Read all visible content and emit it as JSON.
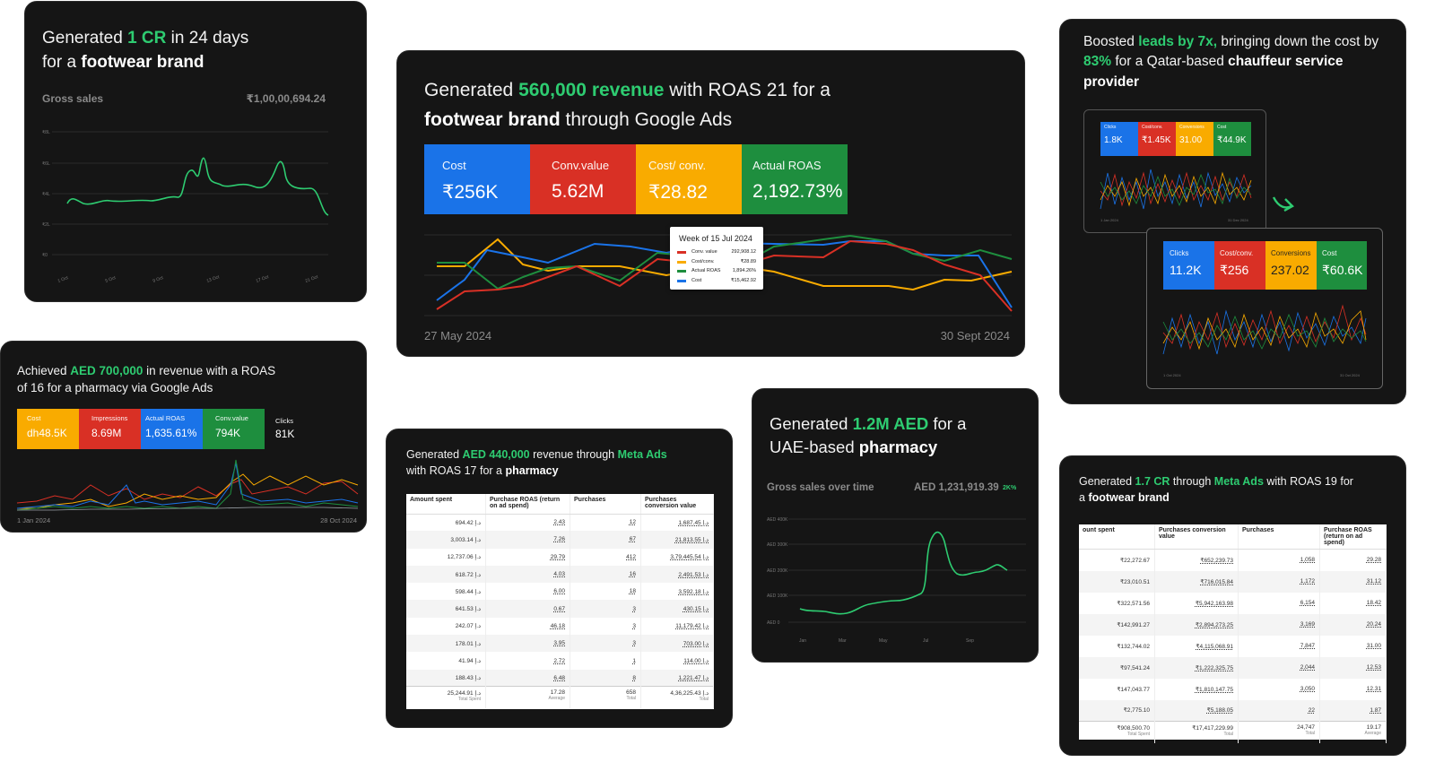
{
  "card1": {
    "headline": {
      "pre": "Generated ",
      "hl": "1 CR",
      "mid": " in 24 days",
      "mid2": "for a ",
      "bold": "footwear brand"
    },
    "metric_label": "Gross sales",
    "metric_value": "₹1,00,00,694.24",
    "y_ticks": [
      "₹8L",
      "₹6L",
      "₹4L",
      "₹2L",
      "₹0"
    ],
    "x_ticks": [
      "1 Oct",
      "5 Oct",
      "9 Oct",
      "13 Oct",
      "17 Oct",
      "21 Oct"
    ],
    "line_color": "#2ecc71"
  },
  "card2": {
    "headline": {
      "pre": "Generated ",
      "hl": "560,000 revenue",
      "mid": " with ROAS 21 for a",
      "bold": "footwear brand",
      "post": " through Google Ads"
    },
    "stats": [
      {
        "label": "Cost",
        "value": "₹256K",
        "color": "#1a73e8"
      },
      {
        "label": "Conv.value",
        "value": "5.62M",
        "color": "#d93025"
      },
      {
        "label": "Cost/ conv.",
        "value": "₹28.82",
        "color": "#f9ab00"
      },
      {
        "label": "Actual ROAS",
        "value": "2,192.73%",
        "color": "#1e8e3e"
      }
    ],
    "tooltip": {
      "title": "Week of 15 Jul 2024",
      "rows": [
        {
          "name": "Conv. value",
          "value": "292,908.12",
          "color": "#d93025"
        },
        {
          "name": "Cost/conv.",
          "value": "₹28.89",
          "color": "#f9ab00"
        },
        {
          "name": "Actual ROAS",
          "value": "1,894.26%",
          "color": "#1e8e3e"
        },
        {
          "name": "Cost",
          "value": "₹15,462.92",
          "color": "#1a73e8"
        }
      ]
    },
    "date_start": "27 May 2024",
    "date_end": "30 Sept 2024"
  },
  "card3": {
    "headline": {
      "pre": "Boosted ",
      "hl": "leads by 7x,",
      "mid": " bringing down the cost by ",
      "hl2": "83%",
      "mid2": " for a Qatar-based ",
      "bold": "chauffeur service provider"
    },
    "before": {
      "stats": [
        {
          "label": "Clicks",
          "value": "1.8K",
          "color": "#1a73e8"
        },
        {
          "label": "Cost/conv.",
          "value": "₹1.45K",
          "color": "#d93025"
        },
        {
          "label": "Conversions",
          "value": "31.00",
          "color": "#f9ab00"
        },
        {
          "label": "Cost",
          "value": "₹44.9K",
          "color": "#1e8e3e"
        }
      ],
      "date_start": "1 Jan 2024",
      "date_end": "31 Dec 2024"
    },
    "after": {
      "stats": [
        {
          "label": "Clicks",
          "value": "11.2K",
          "color": "#1a73e8"
        },
        {
          "label": "Cost/conv.",
          "value": "₹256",
          "color": "#d93025"
        },
        {
          "label": "Conversions",
          "value": "237.02",
          "color": "#f9ab00"
        },
        {
          "label": "Cost",
          "value": "₹60.6K",
          "color": "#1e8e3e"
        }
      ],
      "date_start": "1 Oct 2024",
      "date_end": "31 Oct 2024"
    },
    "arrow_icon": "curved-arrow-icon"
  },
  "card4": {
    "headline": {
      "pre": "Achieved ",
      "hl": "AED 700,000",
      "mid": " in revenue with a ROAS",
      "mid2": "of 16 for a pharmacy via Google Ads"
    },
    "stats": [
      {
        "label": "Cost",
        "value": "dh48.5K",
        "color": "#f9ab00"
      },
      {
        "label": "Impressions",
        "value": "8.69M",
        "color": "#d93025"
      },
      {
        "label": "Actual ROAS",
        "value": "1,635.61%",
        "color": "#1a73e8"
      },
      {
        "label": "Conv.value",
        "value": "794K",
        "color": "#1e8e3e"
      },
      {
        "label": "Clicks",
        "value": "81K",
        "color": ""
      }
    ],
    "date_start": "1 Jan 2024",
    "date_end": "28 Oct 2024"
  },
  "card5": {
    "headline": {
      "pre": "Generated ",
      "hl": "AED 440,000",
      "mid": " revenue through ",
      "hl2": "Meta Ads",
      "mid2": "with ROAS 17 for a ",
      "bold": "pharmacy"
    },
    "columns": [
      "Amount spent",
      "Purchase ROAS (return on ad spend)",
      "Purchases",
      "Purchases conversion value"
    ],
    "rows": [
      [
        "694.42 د.إ",
        "2.43",
        "12",
        "1,687.45 د.إ"
      ],
      [
        "3,003.14 د.إ",
        "7.26",
        "67",
        "21,813.55 د.إ"
      ],
      [
        "12,737.06 د.إ",
        "29.79",
        "412",
        "3,79,445.54 د.إ"
      ],
      [
        "618.72 د.إ",
        "4.03",
        "16",
        "2,491.53 د.إ"
      ],
      [
        "598.44 د.إ",
        "6.00",
        "18",
        "3,592.18 د.إ"
      ],
      [
        "641.53 د.إ",
        "0.67",
        "3",
        "430.15 د.إ"
      ],
      [
        "242.07 د.إ",
        "46.18",
        "3",
        "11,179.42 د.إ"
      ],
      [
        "178.01 د.إ",
        "3.95",
        "3",
        "703.00 د.إ"
      ],
      [
        "41.94 د.إ",
        "2.72",
        "1",
        "114.00 د.إ"
      ],
      [
        "188.43 د.إ",
        "6.48",
        "8",
        "1,221.47 د.إ"
      ]
    ],
    "totals": [
      {
        "value": "25,244.91 د.إ",
        "sub": "Total Spent"
      },
      {
        "value": "17.28",
        "sub": "Average"
      },
      {
        "value": "658",
        "sub": "Total"
      },
      {
        "value": "4,36,225.43 د.إ",
        "sub": "Total"
      }
    ]
  },
  "card6": {
    "headline": {
      "pre": "Generated ",
      "hl": "1.2M AED",
      "mid": " for a",
      "mid2": "UAE-based ",
      "bold": "pharmacy"
    },
    "metric_label": "Gross sales over time",
    "metric_value": "AED 1,231,919.39",
    "metric_badge": "2K%",
    "y_ticks": [
      "AED 400K",
      "AED 300K",
      "AED 200K",
      "AED 100K",
      "AED 0"
    ],
    "x_ticks": [
      "Jan",
      "Mar",
      "May",
      "Jul",
      "Sep"
    ]
  },
  "card7": {
    "headline": {
      "pre": "Generated ",
      "hl": "1.7 CR",
      "mid": " through ",
      "hl2": "Meta Ads",
      "mid2": " with ROAS 19 for",
      "mid3": "a ",
      "bold": "footwear brand"
    },
    "columns": [
      "ount spent",
      "Purchases conversion value",
      "Purchases",
      "Purchase ROAS (return on ad spend)"
    ],
    "rows": [
      [
        "₹22,272.67",
        "₹652,239.73",
        "1,058",
        "29.28"
      ],
      [
        "₹23,010.51",
        "₹716,015.84",
        "1,172",
        "31.12"
      ],
      [
        "₹322,571.56",
        "₹5,942,163.98",
        "6,154",
        "18.42"
      ],
      [
        "₹142,991.27",
        "₹2,894,273.25",
        "3,169",
        "20.24"
      ],
      [
        "₹132,744.02",
        "₹4,115,068.91",
        "7,847",
        "31.00"
      ],
      [
        "₹97,541.24",
        "₹1,222,325.75",
        "2,044",
        "12.53"
      ],
      [
        "₹147,043.77",
        "₹1,810,147.75",
        "3,050",
        "12.31"
      ],
      [
        "₹2,775.10",
        "₹5,188.05",
        "22",
        "1.87"
      ]
    ],
    "totals": [
      {
        "value": "₹908,500.70",
        "sub": "Total Spent"
      },
      {
        "value": "₹17,417,229.99",
        "sub": "Total"
      },
      {
        "value": "24,747",
        "sub": "Total"
      },
      {
        "value": "19.17",
        "sub": "Average"
      }
    ]
  }
}
